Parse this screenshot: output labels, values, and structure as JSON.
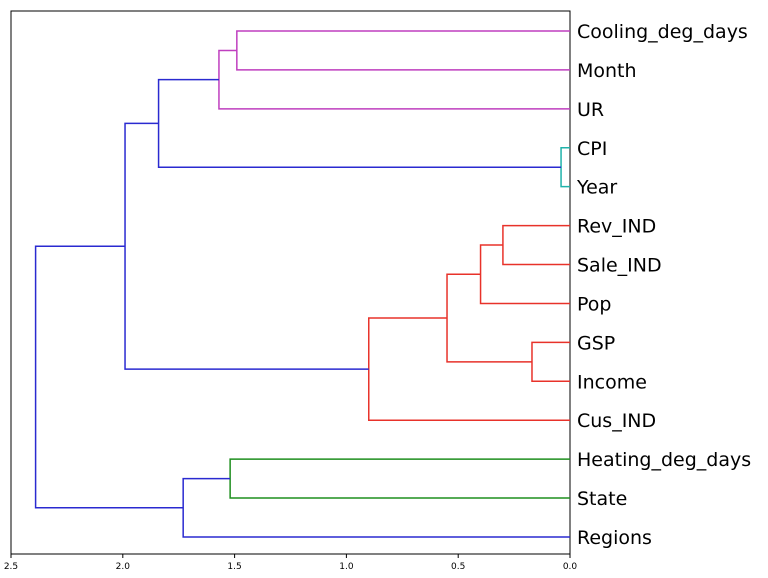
{
  "chart_data": {
    "type": "dendrogram",
    "orientation": "left",
    "title": "",
    "xlabel": "",
    "ylabel": "",
    "xlim": [
      2.5,
      0.0
    ],
    "x_ticks": [
      2.5,
      2.0,
      1.5,
      1.0,
      0.5,
      0.0
    ],
    "x_tick_labels": [
      "2.5",
      "2.0",
      "1.5",
      "1.0",
      "0.5",
      "0.0"
    ],
    "grid": false,
    "leaves": [
      "Cooling_deg_days",
      "Month",
      "UR",
      "CPI",
      "Year",
      "Rev_IND",
      "Sale_IND",
      "Pop",
      "GSP",
      "Income",
      "Cus_IND",
      "Heating_deg_days",
      "State",
      "Regions"
    ],
    "links": [
      {
        "id": "L1",
        "left": "Cooling_deg_days",
        "right": "Month",
        "height": 1.49,
        "color": "#bf3fbf"
      },
      {
        "id": "L2",
        "left": "L1",
        "right": "UR",
        "height": 1.57,
        "color": "#bf3fbf"
      },
      {
        "id": "L3",
        "left": "CPI",
        "right": "Year",
        "height": 0.04,
        "color": "#20b2aa"
      },
      {
        "id": "L4",
        "left": "L2",
        "right": "L3",
        "height": 1.84,
        "color": "#2a2ad0"
      },
      {
        "id": "L5",
        "left": "Rev_IND",
        "right": "Sale_IND",
        "height": 0.3,
        "color": "#e8322a"
      },
      {
        "id": "L6",
        "left": "L5",
        "right": "Pop",
        "height": 0.4,
        "color": "#e8322a"
      },
      {
        "id": "L7",
        "left": "GSP",
        "right": "Income",
        "height": 0.17,
        "color": "#e8322a"
      },
      {
        "id": "L8",
        "left": "L6",
        "right": "L7",
        "height": 0.55,
        "color": "#e8322a"
      },
      {
        "id": "L9",
        "left": "L8",
        "right": "Cus_IND",
        "height": 0.9,
        "color": "#e8322a"
      },
      {
        "id": "L10",
        "left": "L4",
        "right": "L9",
        "height": 1.99,
        "color": "#2a2ad0"
      },
      {
        "id": "L11",
        "left": "Heating_deg_days",
        "right": "State",
        "height": 1.52,
        "color": "#1f8f1f"
      },
      {
        "id": "L12",
        "left": "L11",
        "right": "Regions",
        "height": 1.73,
        "color": "#2a2ad0"
      },
      {
        "id": "L13",
        "left": "L10",
        "right": "L12",
        "height": 2.39,
        "color": "#2a2ad0"
      }
    ]
  }
}
